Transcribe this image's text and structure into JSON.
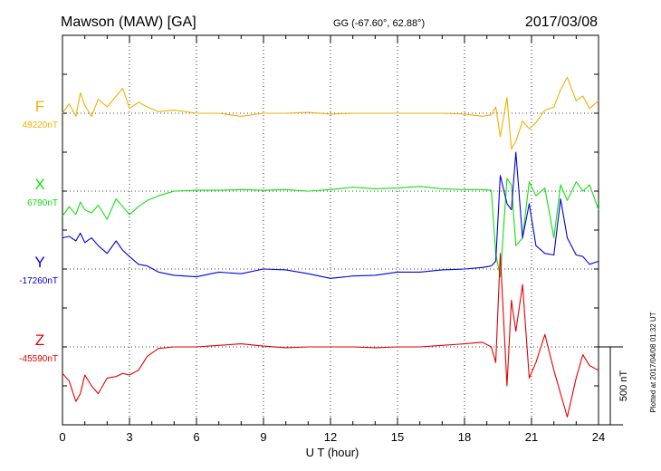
{
  "chart_data": {
    "type": "line",
    "title_left": "Mawson (MAW)  [GA]",
    "title_center": "GG (-67.60°,  62.88°)",
    "title_right": "2017/03/08",
    "xlabel": "U T (hour)",
    "xlim": [
      0,
      24
    ],
    "x_ticks": [
      "0",
      "3",
      "6",
      "9",
      "12",
      "15",
      "18",
      "21",
      "24"
    ],
    "grid": true,
    "scale_bar_label": "500 nT",
    "plot_note": "Plotted at 2017/04/08 01:32 UT",
    "hours": [
      0,
      0.3,
      0.6,
      0.8,
      1.0,
      1.3,
      1.6,
      2.0,
      2.4,
      2.7,
      3.0,
      3.4,
      3.8,
      4.3,
      5.0,
      6.0,
      7.0,
      8.0,
      9.0,
      10.0,
      11.0,
      12.0,
      13.0,
      14.0,
      15.0,
      16.0,
      17.0,
      18.0,
      18.8,
      19.2,
      19.4,
      19.6,
      19.9,
      20.1,
      20.3,
      20.6,
      20.9,
      21.2,
      21.6,
      22.0,
      22.3,
      22.6,
      23.0,
      23.3,
      23.6,
      24.0
    ],
    "series": [
      {
        "name": "F",
        "baseline_label": "49220nT",
        "color": "#f0b000",
        "values": [
          0,
          60,
          -20,
          130,
          50,
          -20,
          90,
          40,
          110,
          160,
          30,
          70,
          40,
          10,
          20,
          0,
          0,
          -20,
          0,
          0,
          5,
          -5,
          0,
          0,
          0,
          0,
          0,
          -5,
          -20,
          -10,
          40,
          -150,
          100,
          -230,
          -180,
          -50,
          -100,
          -60,
          20,
          40,
          150,
          230,
          80,
          110,
          30,
          80
        ]
      },
      {
        "name": "X",
        "baseline_label": "6790nT",
        "color": "#10e010",
        "values": [
          -160,
          -100,
          -150,
          -70,
          -120,
          -140,
          -90,
          -180,
          -50,
          -100,
          -150,
          -100,
          -60,
          -30,
          0,
          5,
          5,
          10,
          5,
          10,
          0,
          10,
          25,
          15,
          20,
          30,
          15,
          10,
          10,
          5,
          -400,
          -550,
          80,
          40,
          -350,
          -300,
          60,
          -30,
          20,
          -300,
          40,
          -60,
          60,
          0,
          40,
          -120
        ]
      },
      {
        "name": "Y",
        "baseline_label": "-17260nT",
        "color": "#0000e0",
        "values": [
          200,
          210,
          180,
          230,
          170,
          200,
          150,
          100,
          180,
          120,
          80,
          30,
          20,
          -20,
          -40,
          -50,
          -20,
          -30,
          0,
          -5,
          -30,
          -60,
          -45,
          -40,
          -20,
          -20,
          -5,
          0,
          10,
          20,
          50,
          600,
          420,
          380,
          750,
          200,
          420,
          150,
          100,
          90,
          450,
          200,
          90,
          80,
          30,
          50
        ]
      },
      {
        "name": "Z",
        "baseline_label": "-45590nT",
        "color": "#e00000",
        "values": [
          -170,
          -220,
          -350,
          -300,
          -180,
          -250,
          -300,
          -200,
          -190,
          -170,
          -180,
          -150,
          -60,
          -10,
          0,
          0,
          10,
          20,
          5,
          -5,
          0,
          0,
          0,
          -5,
          0,
          0,
          10,
          20,
          30,
          0,
          -100,
          600,
          -250,
          300,
          100,
          400,
          -200,
          -100,
          80,
          -150,
          -300,
          -450,
          -200,
          -50,
          -120,
          -150
        ]
      }
    ]
  }
}
